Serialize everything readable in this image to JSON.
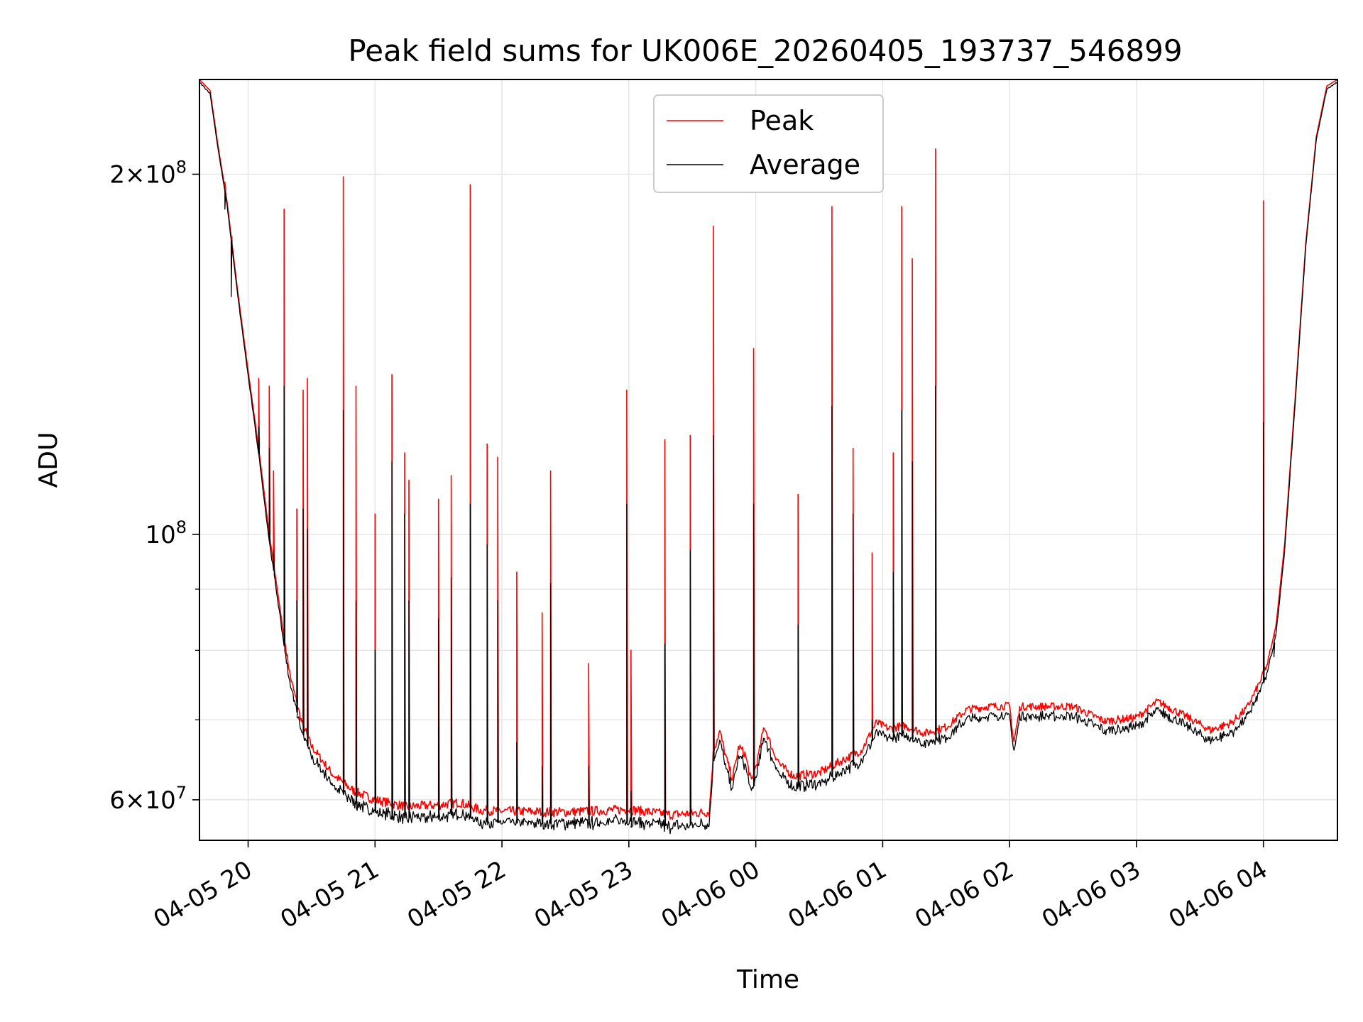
{
  "chart_data": {
    "type": "line",
    "title": "Peak field sums for UK006E_20260405_193737_546899",
    "xlabel": "Time",
    "ylabel": "ADU",
    "y_scale": "log",
    "ylim": [
      55500000,
      240000000
    ],
    "xlim": [
      "2026-04-05 19:37",
      "2026-04-06 04:35"
    ],
    "grid": true,
    "legend_position": "upper center",
    "x_ticks": [
      {
        "t": "2026-04-05 20:00",
        "label": "04-05 20"
      },
      {
        "t": "2026-04-05 21:00",
        "label": "04-05 21"
      },
      {
        "t": "2026-04-05 22:00",
        "label": "04-05 22"
      },
      {
        "t": "2026-04-05 23:00",
        "label": "04-05 23"
      },
      {
        "t": "2026-04-06 00:00",
        "label": "04-06 00"
      },
      {
        "t": "2026-04-06 01:00",
        "label": "04-06 01"
      },
      {
        "t": "2026-04-06 02:00",
        "label": "04-06 02"
      },
      {
        "t": "2026-04-06 03:00",
        "label": "04-06 03"
      },
      {
        "t": "2026-04-06 04:00",
        "label": "04-06 04"
      }
    ],
    "y_major_ticks": [
      {
        "value": 60000000,
        "mantissa": "6",
        "exp": "7"
      },
      {
        "value": 100000000,
        "mantissa": "",
        "exp": "8"
      },
      {
        "value": 200000000,
        "mantissa": "2",
        "exp": "8"
      }
    ],
    "y_minor_grid": [
      70000000,
      80000000,
      90000000
    ],
    "series": [
      {
        "name": "Peak",
        "color": "#ff0000",
        "baseline": [
          [
            "2026-04-05 19:37",
            240000000
          ],
          [
            "2026-04-05 19:42",
            235000000
          ],
          [
            "2026-04-05 19:46",
            210000000
          ],
          [
            "2026-04-05 19:50",
            190000000
          ],
          [
            "2026-04-05 19:55",
            160000000
          ],
          [
            "2026-04-05 20:00",
            137000000
          ],
          [
            "2026-04-05 20:05",
            118000000
          ],
          [
            "2026-04-05 20:10",
            100000000
          ],
          [
            "2026-04-05 20:13",
            92000000
          ],
          [
            "2026-04-05 20:17",
            82000000
          ],
          [
            "2026-04-05 20:20",
            76000000
          ],
          [
            "2026-04-05 20:25",
            70000000
          ],
          [
            "2026-04-05 20:30",
            66500000
          ],
          [
            "2026-04-05 20:40",
            63000000
          ],
          [
            "2026-04-05 20:50",
            61000000
          ],
          [
            "2026-04-05 21:00",
            60000000
          ],
          [
            "2026-04-05 21:15",
            59200000
          ],
          [
            "2026-04-05 21:30",
            59400000
          ],
          [
            "2026-04-05 21:40",
            59700000
          ],
          [
            "2026-04-05 21:50",
            58800000
          ],
          [
            "2026-04-05 22:00",
            58700000
          ],
          [
            "2026-04-05 22:30",
            58600000
          ],
          [
            "2026-04-05 23:00",
            58900000
          ],
          [
            "2026-04-05 23:20",
            58300000
          ],
          [
            "2026-04-05 23:38",
            58600000
          ],
          [
            "2026-04-05 23:40",
            66000000
          ],
          [
            "2026-04-05 23:43",
            68500000
          ],
          [
            "2026-04-05 23:46",
            65000000
          ],
          [
            "2026-04-05 23:49",
            62500000
          ],
          [
            "2026-04-05 23:52",
            66500000
          ],
          [
            "2026-04-05 23:55",
            65500000
          ],
          [
            "2026-04-05 23:58",
            62000000
          ],
          [
            "2026-04-06 00:01",
            65000000
          ],
          [
            "2026-04-06 00:04",
            69200000
          ],
          [
            "2026-04-06 00:08",
            66000000
          ],
          [
            "2026-04-06 00:12",
            64000000
          ],
          [
            "2026-04-06 00:18",
            62800000
          ],
          [
            "2026-04-06 00:30",
            63200000
          ],
          [
            "2026-04-06 00:40",
            64600000
          ],
          [
            "2026-04-06 00:50",
            66000000
          ],
          [
            "2026-04-06 00:57",
            69600000
          ],
          [
            "2026-04-06 01:03",
            68800000
          ],
          [
            "2026-04-06 01:10",
            69200000
          ],
          [
            "2026-04-06 01:20",
            68200000
          ],
          [
            "2026-04-06 01:30",
            69000000
          ],
          [
            "2026-04-06 01:40",
            71400000
          ],
          [
            "2026-04-06 01:50",
            71800000
          ],
          [
            "2026-04-06 02:00",
            71900000
          ],
          [
            "2026-04-06 02:02",
            67000000
          ],
          [
            "2026-04-06 02:05",
            71800000
          ],
          [
            "2026-04-06 02:30",
            71800000
          ],
          [
            "2026-04-06 02:45",
            69800000
          ],
          [
            "2026-04-06 03:00",
            70300000
          ],
          [
            "2026-04-06 03:10",
            72500000
          ],
          [
            "2026-04-06 03:25",
            70200000
          ],
          [
            "2026-04-06 03:35",
            68600000
          ],
          [
            "2026-04-06 03:45",
            69600000
          ],
          [
            "2026-04-06 03:52",
            71500000
          ],
          [
            "2026-04-06 03:58",
            75000000
          ],
          [
            "2026-04-06 04:02",
            78000000
          ],
          [
            "2026-04-06 04:06",
            84000000
          ],
          [
            "2026-04-06 04:10",
            98000000
          ],
          [
            "2026-04-06 04:15",
            130000000
          ],
          [
            "2026-04-06 04:20",
            175000000
          ],
          [
            "2026-04-06 04:25",
            215000000
          ],
          [
            "2026-04-06 04:30",
            237000000
          ],
          [
            "2026-04-06 04:35",
            240000000
          ]
        ],
        "spikes": [
          [
            "2026-04-05 19:49",
            197000000
          ],
          [
            "2026-04-05 19:52",
            167000000
          ],
          [
            "2026-04-05 20:05",
            135000000
          ],
          [
            "2026-04-05 20:10",
            133000000
          ],
          [
            "2026-04-05 20:12",
            113000000
          ],
          [
            "2026-04-05 20:17",
            187000000
          ],
          [
            "2026-04-05 20:23",
            105000000
          ],
          [
            "2026-04-05 20:26",
            132000000
          ],
          [
            "2026-04-05 20:28",
            135000000
          ],
          [
            "2026-04-05 20:45",
            199000000
          ],
          [
            "2026-04-05 20:51",
            133000000
          ],
          [
            "2026-04-05 21:00",
            104000000
          ],
          [
            "2026-04-05 21:08",
            136000000
          ],
          [
            "2026-04-05 21:14",
            117000000
          ],
          [
            "2026-04-05 21:16",
            111000000
          ],
          [
            "2026-04-05 21:30",
            107000000
          ],
          [
            "2026-04-05 21:36",
            112000000
          ],
          [
            "2026-04-05 21:45",
            196000000
          ],
          [
            "2026-04-05 21:53",
            119000000
          ],
          [
            "2026-04-05 21:58",
            116000000
          ],
          [
            "2026-04-05 22:07",
            93000000
          ],
          [
            "2026-04-05 22:19",
            86000000
          ],
          [
            "2026-04-05 22:23",
            113000000
          ],
          [
            "2026-04-05 22:41",
            78000000
          ],
          [
            "2026-04-05 22:59",
            132000000
          ],
          [
            "2026-04-05 23:01",
            80000000
          ],
          [
            "2026-04-05 23:17",
            120000000
          ],
          [
            "2026-04-05 23:29",
            121000000
          ],
          [
            "2026-04-05 23:40",
            181000000
          ],
          [
            "2026-04-05 23:59",
            143000000
          ],
          [
            "2026-04-06 00:20",
            108000000
          ],
          [
            "2026-04-06 00:36",
            188000000
          ],
          [
            "2026-04-06 00:46",
            118000000
          ],
          [
            "2026-04-06 00:55",
            96500000
          ],
          [
            "2026-04-06 01:05",
            117000000
          ],
          [
            "2026-04-06 01:09",
            188000000
          ],
          [
            "2026-04-06 01:14",
            170000000
          ],
          [
            "2026-04-06 01:25",
            210000000
          ],
          [
            "2026-04-06 04:00",
            190000000
          ],
          [
            "2026-04-06 04:05",
            82000000
          ]
        ]
      },
      {
        "name": "Average",
        "color": "#000000",
        "baseline_offset": -1300000,
        "spikes": [
          [
            "2026-04-05 19:49",
            187000000
          ],
          [
            "2026-04-05 19:52",
            158000000
          ],
          [
            "2026-04-05 20:05",
            123000000
          ],
          [
            "2026-04-05 20:10",
            118000000
          ],
          [
            "2026-04-05 20:12",
            97000000
          ],
          [
            "2026-04-05 20:17",
            133000000
          ],
          [
            "2026-04-05 20:23",
            88000000
          ],
          [
            "2026-04-05 20:26",
            105000000
          ],
          [
            "2026-04-05 20:28",
            101000000
          ],
          [
            "2026-04-05 20:45",
            127000000
          ],
          [
            "2026-04-05 20:51",
            88000000
          ],
          [
            "2026-04-05 21:00",
            80000000
          ],
          [
            "2026-04-05 21:08",
            115000000
          ],
          [
            "2026-04-05 21:14",
            104000000
          ],
          [
            "2026-04-05 21:16",
            88000000
          ],
          [
            "2026-04-05 21:30",
            85000000
          ],
          [
            "2026-04-05 21:36",
            92000000
          ],
          [
            "2026-04-05 21:45",
            106000000
          ],
          [
            "2026-04-05 21:53",
            98000000
          ],
          [
            "2026-04-05 21:58",
            88000000
          ],
          [
            "2026-04-05 22:07",
            67000000
          ],
          [
            "2026-04-05 22:19",
            64000000
          ],
          [
            "2026-04-05 22:23",
            91000000
          ],
          [
            "2026-04-05 22:41",
            64000000
          ],
          [
            "2026-04-05 22:59",
            106000000
          ],
          [
            "2026-04-05 23:01",
            61000000
          ],
          [
            "2026-04-05 23:17",
            81000000
          ],
          [
            "2026-04-05 23:29",
            97000000
          ],
          [
            "2026-04-05 23:40",
            121000000
          ],
          [
            "2026-04-05 23:59",
            106000000
          ],
          [
            "2026-04-06 00:20",
            84000000
          ],
          [
            "2026-04-06 00:36",
            128000000
          ],
          [
            "2026-04-06 00:46",
            104000000
          ],
          [
            "2026-04-06 00:55",
            70000000
          ],
          [
            "2026-04-06 01:05",
            93000000
          ],
          [
            "2026-04-06 01:09",
            127000000
          ],
          [
            "2026-04-06 01:14",
            115000000
          ],
          [
            "2026-04-06 01:25",
            133000000
          ],
          [
            "2026-04-06 04:00",
            124000000
          ],
          [
            "2026-04-06 04:05",
            79000000
          ]
        ]
      }
    ]
  }
}
